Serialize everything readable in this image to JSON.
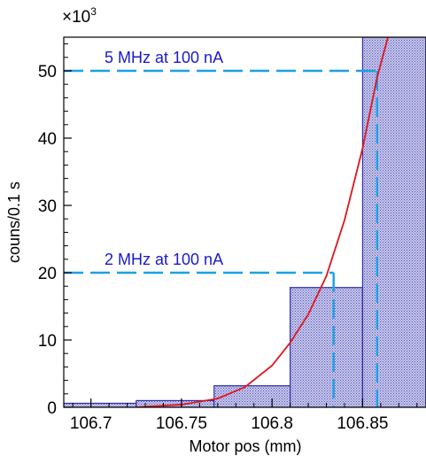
{
  "chart_data": {
    "type": "bar",
    "title": "",
    "xlabel": "Motor pos (mm)",
    "ylabel": "couns/0.1 s",
    "y_multiplier_label": "×10",
    "y_multiplier_exp": "3",
    "xlim": [
      106.685,
      106.885
    ],
    "ylim": [
      0,
      55
    ],
    "x_ticks": [
      106.7,
      106.75,
      106.8,
      106.85
    ],
    "x_tick_labels": [
      "106.7",
      "106.75",
      "106.8",
      "106.85"
    ],
    "y_ticks": [
      0,
      10,
      20,
      30,
      40,
      50
    ],
    "y_tick_labels": [
      "0",
      "10",
      "20",
      "30",
      "40",
      "50"
    ],
    "histogram": {
      "bins": [
        {
          "x0": 106.685,
          "x1": 106.725,
          "value": 0.6
        },
        {
          "x0": 106.725,
          "x1": 106.768,
          "value": 1.0
        },
        {
          "x0": 106.768,
          "x1": 106.81,
          "value": 3.2
        },
        {
          "x0": 106.81,
          "x1": 106.85,
          "value": 17.8
        },
        {
          "x0": 106.85,
          "x1": 106.885,
          "value": 55
        }
      ],
      "color": "#2f2fa8"
    },
    "fit": {
      "color": "#e0141e",
      "points": [
        [
          106.725,
          0.0
        ],
        [
          106.75,
          0.4
        ],
        [
          106.77,
          1.3
        ],
        [
          106.785,
          3.0
        ],
        [
          106.8,
          6.2
        ],
        [
          106.81,
          9.6
        ],
        [
          106.82,
          13.8
        ],
        [
          106.83,
          19.5
        ],
        [
          106.84,
          27.8
        ],
        [
          106.85,
          38.5
        ],
        [
          106.858,
          49.0
        ],
        [
          106.865,
          56.0
        ]
      ]
    },
    "annotations": [
      {
        "label": "5 MHz at 100 nA",
        "y": 50,
        "x_end": 106.858
      },
      {
        "label": "2 MHz at 100 nA",
        "y": 20,
        "x_end": 106.834
      }
    ],
    "annotation_color": "#1aa0e6",
    "annotation_text_color": "#1a1acc",
    "grid": false,
    "legend": "none"
  }
}
